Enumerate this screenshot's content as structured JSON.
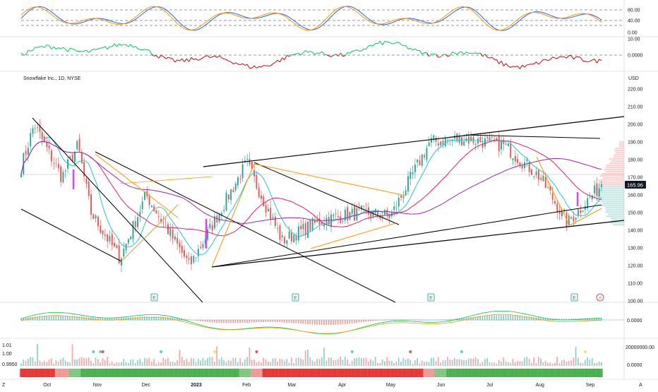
{
  "header": {
    "symbol_title": "Snowflake Inc., 1D, NYSE",
    "currency": "USD"
  },
  "price_axis": {
    "ticks": [
      "220.00",
      "210.00",
      "200.00",
      "190.00",
      "180.00",
      "170.00",
      "160.00",
      "150.00",
      "140.00",
      "130.00",
      "120.00",
      "110.00",
      "100.00"
    ],
    "last_price": "165.96"
  },
  "stoch_axis": {
    "ticks": [
      "80.00",
      "40.00",
      "0.00"
    ]
  },
  "osc_axis": {
    "ticks": [
      "10.00",
      "0.0000"
    ]
  },
  "macd_axis": {
    "ticks": [
      "0.0000"
    ]
  },
  "vol_axis": {
    "ticks": [
      "20000000.00",
      "0.0000"
    ]
  },
  "left_axis": {
    "ticks": [
      "1.01",
      "1.00",
      "0.9950"
    ]
  },
  "time_axis": {
    "ticks": [
      "Oct",
      "Nov",
      "Dec",
      "2023",
      "Feb",
      "Mar",
      "Apr",
      "May",
      "Jun",
      "Jul",
      "Aug",
      "Sep"
    ]
  },
  "corner_labels": {
    "left": "Z",
    "right": "A"
  },
  "earnings_marker": "E",
  "dividend_marker": "⚡",
  "colors": {
    "up": "#26a69a",
    "down": "#ef5350",
    "sma_short": "#26c6da",
    "sma_mid": "#e91e63",
    "sma_long": "#9c27b0",
    "trend_orange": "#ff9800",
    "trend_black": "#000000",
    "stoch_k": "#2962ff",
    "stoch_d": "#ff9800",
    "osc_up": "#00c853",
    "osc_down": "#d50000",
    "price_label_bg": "#131722"
  },
  "chart_data": {
    "type": "candlestick",
    "title": "Snowflake Inc., 1D, NYSE",
    "y_unit": "USD",
    "ylim": [
      100,
      220
    ],
    "x_range": [
      "2022-09-15",
      "2023-09-08"
    ],
    "last_close": 165.96,
    "ohlc_key_points": [
      {
        "x": "2022-09-15",
        "close": 176
      },
      {
        "x": "2022-09-23",
        "close": 200
      },
      {
        "x": "2022-10-10",
        "close": 170
      },
      {
        "x": "2022-10-20",
        "close": 188
      },
      {
        "x": "2022-10-28",
        "close": 150
      },
      {
        "x": "2022-11-15",
        "close": 124
      },
      {
        "x": "2022-12-01",
        "close": 160
      },
      {
        "x": "2022-12-28",
        "close": 120
      },
      {
        "x": "2023-02-01",
        "close": 178
      },
      {
        "x": "2023-02-23",
        "close": 134
      },
      {
        "x": "2023-03-20",
        "close": 146
      },
      {
        "x": "2023-04-13",
        "close": 150
      },
      {
        "x": "2023-05-01",
        "close": 148
      },
      {
        "x": "2023-05-25",
        "close": 190
      },
      {
        "x": "2023-06-15",
        "close": 192
      },
      {
        "x": "2023-07-10",
        "close": 188
      },
      {
        "x": "2023-08-01",
        "close": 170
      },
      {
        "x": "2023-08-18",
        "close": 144
      },
      {
        "x": "2023-09-08",
        "close": 166
      }
    ],
    "indicators": [
      "stochastic",
      "oscillator",
      "sma",
      "macd",
      "volume"
    ],
    "grid": true
  }
}
